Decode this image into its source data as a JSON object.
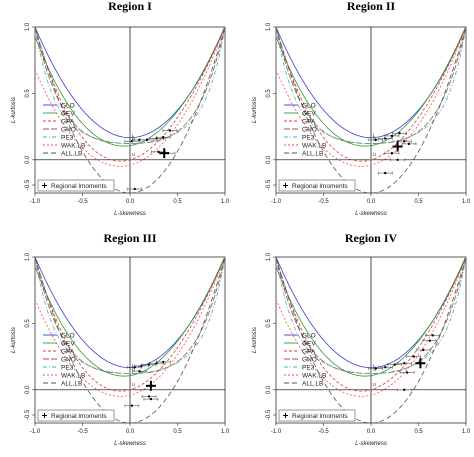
{
  "chart_data": [
    {
      "type": "scatter",
      "title": "Region I",
      "xlabel": "L-skewness",
      "ylabel": "L-kurtosis",
      "xlim": [
        -1.0,
        1.0
      ],
      "ylim": [
        -0.25,
        1.0
      ],
      "xticks": [
        "-1.0",
        "-0.5",
        "0.0",
        "0.5",
        "1.0"
      ],
      "yticks": [
        "-0.5",
        "0.0",
        "0.5",
        "1.0"
      ],
      "legend_position": "bottom-left",
      "legend": [
        "GLO",
        "GEV",
        "GPA",
        "GNO",
        "PE3",
        "WAK.LB",
        "ALL.LB"
      ],
      "points_legend": "Regional lmoments",
      "points": [
        {
          "x": 0.02,
          "y": 0.14
        },
        {
          "x": 0.1,
          "y": 0.15
        },
        {
          "x": 0.18,
          "y": 0.15
        },
        {
          "x": 0.28,
          "y": 0.16
        },
        {
          "x": 0.35,
          "y": 0.17
        },
        {
          "x": 0.42,
          "y": 0.22
        },
        {
          "x": 0.3,
          "y": 0.06
        },
        {
          "x": 0.4,
          "y": 0.05
        },
        {
          "x": 0.05,
          "y": -0.22
        }
      ],
      "regional_average": {
        "x": 0.36,
        "y": 0.05
      }
    },
    {
      "type": "scatter",
      "title": "Region II",
      "xlabel": "L-skewness",
      "ylabel": "L-kurtosis",
      "xlim": [
        -1.0,
        1.0
      ],
      "ylim": [
        -0.25,
        1.0
      ],
      "xticks": [
        "-1.0",
        "-0.5",
        "0.0",
        "0.5",
        "1.0"
      ],
      "yticks": [
        "-0.5",
        "0.0",
        "0.5",
        "1.0"
      ],
      "legend_position": "bottom-left",
      "legend": [
        "GLO",
        "GEV",
        "GPA",
        "GNO",
        "PE3",
        "WAK.LB",
        "ALL.LB"
      ],
      "points_legend": "Regional lmoments",
      "points": [
        {
          "x": 0.05,
          "y": 0.15
        },
        {
          "x": 0.15,
          "y": 0.16
        },
        {
          "x": 0.22,
          "y": 0.18
        },
        {
          "x": 0.3,
          "y": 0.2
        },
        {
          "x": 0.35,
          "y": 0.14
        },
        {
          "x": 0.4,
          "y": 0.12
        },
        {
          "x": 0.22,
          "y": 0.05
        },
        {
          "x": 0.28,
          "y": 0.0
        },
        {
          "x": 0.15,
          "y": -0.1
        }
      ],
      "regional_average": {
        "x": 0.28,
        "y": 0.1
      }
    },
    {
      "type": "scatter",
      "title": "Region III",
      "xlabel": "L-skewness",
      "ylabel": "L-kurtosis",
      "xlim": [
        -1.0,
        1.0
      ],
      "ylim": [
        -0.25,
        1.0
      ],
      "xticks": [
        "-1.0",
        "-0.5",
        "0.0",
        "0.5",
        "1.0"
      ],
      "yticks": [
        "-0.5",
        "0.0",
        "0.5",
        "1.0"
      ],
      "legend_position": "bottom-left",
      "legend": [
        "GLO",
        "GEV",
        "GPA",
        "GNO",
        "PE3",
        "WAK.LB",
        "ALL.LB"
      ],
      "points_legend": "Regional lmoments",
      "points": [
        {
          "x": 0.05,
          "y": 0.17
        },
        {
          "x": 0.12,
          "y": 0.18
        },
        {
          "x": 0.2,
          "y": 0.19
        },
        {
          "x": 0.28,
          "y": 0.2
        },
        {
          "x": 0.35,
          "y": 0.21
        },
        {
          "x": 0.1,
          "y": 0.14
        },
        {
          "x": 0.2,
          "y": -0.05
        },
        {
          "x": 0.22,
          "y": -0.07
        },
        {
          "x": 0.02,
          "y": -0.12
        }
      ],
      "regional_average": {
        "x": 0.22,
        "y": 0.03
      }
    },
    {
      "type": "scatter",
      "title": "Region IV",
      "xlabel": "L-skewness",
      "ylabel": "L-kurtosis",
      "xlim": [
        -1.0,
        1.0
      ],
      "ylim": [
        -0.25,
        1.0
      ],
      "xticks": [
        "-1.0",
        "-0.5",
        "0.0",
        "0.5",
        "1.0"
      ],
      "yticks": [
        "-0.5",
        "0.0",
        "0.5",
        "1.0"
      ],
      "legend_position": "bottom-left",
      "legend": [
        "GLO",
        "GEV",
        "GPA",
        "GNO",
        "PE3",
        "WAK.LB",
        "ALL.LB"
      ],
      "points_legend": "Regional lmoments",
      "points": [
        {
          "x": 0.05,
          "y": 0.16
        },
        {
          "x": 0.15,
          "y": 0.17
        },
        {
          "x": 0.25,
          "y": 0.19
        },
        {
          "x": 0.35,
          "y": 0.2
        },
        {
          "x": 0.45,
          "y": 0.25
        },
        {
          "x": 0.55,
          "y": 0.3
        },
        {
          "x": 0.62,
          "y": 0.37
        },
        {
          "x": 0.65,
          "y": 0.41
        },
        {
          "x": 0.38,
          "y": 0.13
        },
        {
          "x": 0.35,
          "y": 0.0
        }
      ],
      "regional_average": {
        "x": 0.52,
        "y": 0.2
      }
    }
  ],
  "curve_colors": {
    "GLO": "#3b3bd6",
    "GEV": "#2e9e2e",
    "GPA": "#d83a3a",
    "GNO": "#9a5a3a",
    "PE3": "#41b0c8",
    "WAK.LB": "#ff4f4f",
    "ALL.LB": "#555555"
  }
}
